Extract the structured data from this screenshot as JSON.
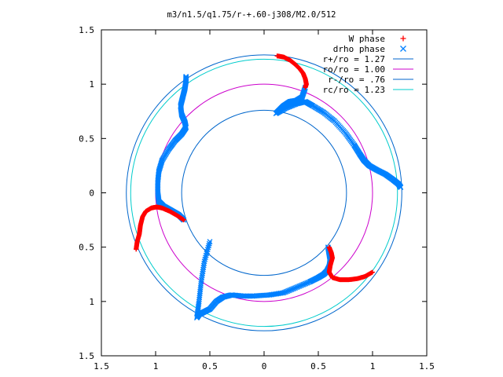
{
  "chart_data": {
    "type": "scatter",
    "title": "m3/n1.5/q1.75/r-+.60-j308/M2.0/512",
    "xlim": [
      -1.5,
      1.5
    ],
    "ylim": [
      -1.5,
      1.5
    ],
    "xtick_values": [
      -1.5,
      -1,
      -0.5,
      0,
      0.5,
      1,
      1.5
    ],
    "ytick_values": [
      -1.5,
      -1,
      -0.5,
      0,
      0.5,
      1,
      1.5
    ],
    "xtick_labels": [
      "1.5",
      "1",
      "0.5",
      "0",
      "0.5",
      "1",
      "1.5"
    ],
    "ytick_labels": [
      "1.5",
      "1",
      "0.5",
      "0",
      "0.5",
      "1",
      "1.5"
    ],
    "xlabel": "",
    "ylabel": "",
    "grid": false,
    "legend_position": "top-right",
    "legend": [
      {
        "label": "W phase",
        "kind": "point",
        "marker": "+",
        "color": "#ff0000"
      },
      {
        "label": "drho phase",
        "kind": "point",
        "marker": "x",
        "color": "#0080ff"
      },
      {
        "label": "r+/ro = 1.27",
        "kind": "circle",
        "radius": 1.27,
        "color": "#0066cc"
      },
      {
        "label": "ro/ro = 1.00",
        "kind": "circle",
        "radius": 1.0,
        "color": "#cc00cc"
      },
      {
        "label": "r-/ro = .76",
        "kind": "circle",
        "radius": 0.76,
        "color": "#0066cc"
      },
      {
        "label": "rc/ro = 1.23",
        "kind": "circle",
        "radius": 1.23,
        "color": "#00cccc"
      }
    ],
    "w_phase_arms": [
      {
        "name": "arm-1",
        "points": [
          [
            0.12,
            1.26
          ],
          [
            0.18,
            1.25
          ],
          [
            0.24,
            1.22
          ],
          [
            0.29,
            1.18
          ],
          [
            0.33,
            1.14
          ],
          [
            0.36,
            1.1
          ],
          [
            0.38,
            1.05
          ],
          [
            0.39,
            1.0
          ],
          [
            0.38,
            0.97
          ]
        ]
      },
      {
        "name": "arm-2",
        "points": [
          [
            0.6,
            -0.5
          ],
          [
            0.62,
            -0.55
          ],
          [
            0.63,
            -0.6
          ],
          [
            0.61,
            -0.67
          ],
          [
            0.6,
            -0.73
          ],
          [
            0.63,
            -0.78
          ],
          [
            0.7,
            -0.8
          ],
          [
            0.78,
            -0.8
          ],
          [
            0.86,
            -0.79
          ],
          [
            0.93,
            -0.77
          ],
          [
            1.0,
            -0.73
          ]
        ]
      },
      {
        "name": "arm-3",
        "points": [
          [
            -0.74,
            -0.25
          ],
          [
            -0.8,
            -0.21
          ],
          [
            -0.87,
            -0.17
          ],
          [
            -0.94,
            -0.14
          ],
          [
            -0.99,
            -0.13
          ],
          [
            -1.04,
            -0.14
          ],
          [
            -1.09,
            -0.17
          ],
          [
            -1.12,
            -0.22
          ],
          [
            -1.14,
            -0.3
          ],
          [
            -1.15,
            -0.38
          ],
          [
            -1.17,
            -0.45
          ],
          [
            -1.18,
            -0.52
          ]
        ]
      }
    ],
    "drho_phase_arms": [
      {
        "name": "arm-1",
        "points": [
          [
            0.38,
            0.97
          ],
          [
            0.35,
            0.88
          ],
          [
            0.3,
            0.85
          ],
          [
            0.24,
            0.84
          ],
          [
            0.18,
            0.8
          ],
          [
            0.14,
            0.76
          ],
          [
            0.11,
            0.73
          ],
          [
            0.2,
            0.78
          ],
          [
            0.3,
            0.82
          ],
          [
            0.38,
            0.84
          ],
          [
            0.45,
            0.8
          ],
          [
            0.55,
            0.74
          ],
          [
            0.65,
            0.66
          ],
          [
            0.75,
            0.55
          ],
          [
            0.83,
            0.44
          ],
          [
            0.88,
            0.36
          ],
          [
            0.92,
            0.3
          ],
          [
            0.97,
            0.25
          ],
          [
            1.04,
            0.21
          ],
          [
            1.12,
            0.17
          ],
          [
            1.19,
            0.12
          ],
          [
            1.24,
            0.08
          ],
          [
            1.26,
            0.05
          ]
        ]
      },
      {
        "name": "arm-2",
        "points": [
          [
            -0.5,
            -0.45
          ],
          [
            -0.55,
            -0.63
          ],
          [
            -0.58,
            -0.82
          ],
          [
            -0.6,
            -1.0
          ],
          [
            -0.62,
            -1.15
          ],
          [
            -0.6,
            -1.12
          ],
          [
            -0.56,
            -1.1
          ],
          [
            -0.5,
            -1.07
          ],
          [
            -0.44,
            -1.0
          ],
          [
            -0.38,
            -0.96
          ],
          [
            -0.3,
            -0.94
          ],
          [
            -0.2,
            -0.95
          ],
          [
            -0.1,
            -0.95
          ],
          [
            0.05,
            -0.94
          ],
          [
            0.18,
            -0.92
          ],
          [
            0.3,
            -0.87
          ],
          [
            0.42,
            -0.82
          ],
          [
            0.5,
            -0.78
          ],
          [
            0.55,
            -0.75
          ],
          [
            0.58,
            -0.72
          ],
          [
            0.6,
            -0.68
          ],
          [
            0.61,
            -0.62
          ],
          [
            0.6,
            -0.56
          ],
          [
            0.59,
            -0.5
          ]
        ]
      },
      {
        "name": "arm-3",
        "points": [
          [
            -0.74,
            -0.25
          ],
          [
            -0.79,
            -0.2
          ],
          [
            -0.86,
            -0.16
          ],
          [
            -0.93,
            -0.12
          ],
          [
            -0.97,
            -0.08
          ],
          [
            -0.98,
            0.0
          ],
          [
            -0.98,
            0.1
          ],
          [
            -0.97,
            0.2
          ],
          [
            -0.94,
            0.3
          ],
          [
            -0.88,
            0.4
          ],
          [
            -0.82,
            0.48
          ],
          [
            -0.76,
            0.54
          ],
          [
            -0.72,
            0.6
          ],
          [
            -0.73,
            0.65
          ],
          [
            -0.76,
            0.72
          ],
          [
            -0.77,
            0.8
          ],
          [
            -0.75,
            0.88
          ],
          [
            -0.73,
            0.96
          ],
          [
            -0.72,
            1.03
          ],
          [
            -0.72,
            1.07
          ]
        ]
      }
    ]
  }
}
